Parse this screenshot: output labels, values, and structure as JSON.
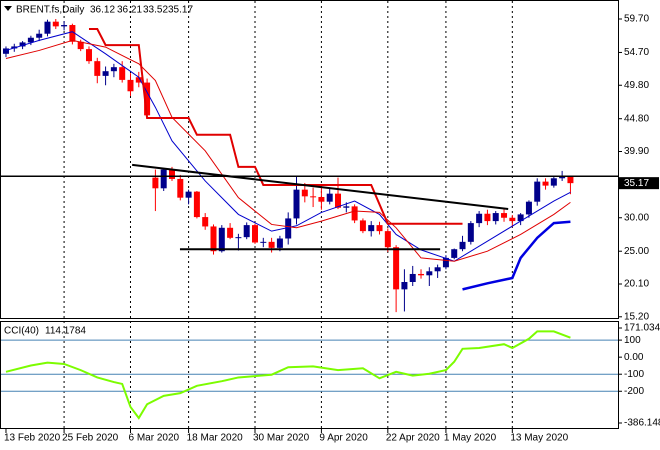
{
  "chart_data": [
    {
      "type": "candlestick",
      "title": "BRENT.fs,Daily",
      "open": [
        54.5,
        55.3,
        55.6,
        56.2,
        56.9,
        57.5,
        59.3,
        58.6,
        58.8,
        56.3,
        55.2,
        53.4,
        51.2,
        51.9,
        52.5,
        50.6,
        51.0,
        50.2,
        36.0,
        34.4,
        37.2,
        35.8,
        33.0,
        33.9,
        30.1,
        28.7,
        25.0,
        28.5,
        27.0,
        27.1,
        28.9,
        26.3,
        26.4,
        25.5,
        26.9,
        29.9,
        34.2,
        33.2,
        33.1,
        32.4,
        33.6,
        31.5,
        31.7,
        29.6,
        28.0,
        28.9,
        28.0,
        25.6,
        19.3,
        20.4,
        21.6,
        21.4,
        22.0,
        22.6,
        24.0,
        25.3,
        26.4,
        29.2,
        30.6,
        29.5,
        30.7,
        30.0,
        29.5,
        30.5,
        32.4,
        35.4,
        34.8,
        35.9,
        36.12
      ],
      "high": [
        55.6,
        56.0,
        56.4,
        57.2,
        58.1,
        59.6,
        59.7,
        59.4,
        59.0,
        56.6,
        55.6,
        53.9,
        52.6,
        53.0,
        53.4,
        51.6,
        51.8,
        50.8,
        37.2,
        37.3,
        37.6,
        36.4,
        34.2,
        34.0,
        30.7,
        29.0,
        28.9,
        29.2,
        27.6,
        29.3,
        29.1,
        27.0,
        27.0,
        27.3,
        30.8,
        36.3,
        35.2,
        34.5,
        34.9,
        34.3,
        36.0,
        32.3,
        32.0,
        29.9,
        29.5,
        29.4,
        28.4,
        25.9,
        22.3,
        22.8,
        22.3,
        22.6,
        23.0,
        24.4,
        25.4,
        27.3,
        29.5,
        31.0,
        31.2,
        31.0,
        31.3,
        30.4,
        30.7,
        32.6,
        35.9,
        35.9,
        36.2,
        37.0,
        36.21
      ],
      "low": [
        54.0,
        54.8,
        55.2,
        55.8,
        56.4,
        57.1,
        58.2,
        58.0,
        55.9,
        54.9,
        53.0,
        50.1,
        49.8,
        51.0,
        50.2,
        48.2,
        49.5,
        45.1,
        31.0,
        34.0,
        35.5,
        32.6,
        32.0,
        29.9,
        28.2,
        24.5,
        24.8,
        26.8,
        25.1,
        26.8,
        26.1,
        25.6,
        24.8,
        25.0,
        26.0,
        29.0,
        32.3,
        31.6,
        31.2,
        32.0,
        31.3,
        30.8,
        29.2,
        27.7,
        27.2,
        27.5,
        24.9,
        15.9,
        16.0,
        19.8,
        20.9,
        19.8,
        21.0,
        22.3,
        23.8,
        25.0,
        26.0,
        28.6,
        28.9,
        29.0,
        29.4,
        28.6,
        28.9,
        30.0,
        31.8,
        34.2,
        34.5,
        35.5,
        33.52
      ],
      "close": [
        55.3,
        55.6,
        56.2,
        56.9,
        57.5,
        59.3,
        58.6,
        58.8,
        56.3,
        55.2,
        53.4,
        51.2,
        51.9,
        52.5,
        50.6,
        48.9,
        50.2,
        45.3,
        34.4,
        37.2,
        35.8,
        33.0,
        33.9,
        30.1,
        28.7,
        25.0,
        28.5,
        27.0,
        27.1,
        28.9,
        26.3,
        26.4,
        25.5,
        26.9,
        29.9,
        34.2,
        33.2,
        33.1,
        32.4,
        33.6,
        31.5,
        31.7,
        29.6,
        28.0,
        28.9,
        28.0,
        25.6,
        19.3,
        20.4,
        21.6,
        21.4,
        22.0,
        22.6,
        24.0,
        25.3,
        26.4,
        29.2,
        30.6,
        29.5,
        30.7,
        30.0,
        29.5,
        30.5,
        32.4,
        35.4,
        34.8,
        35.9,
        36.1,
        35.17
      ],
      "up_color": "#00008b",
      "down_color": "#ff0000",
      "xlim": [
        -0.72,
        73.73
      ],
      "ylim": [
        15.02,
        62.24
      ],
      "yticks": [
        {
          "value": 59.7,
          "label": "59.70"
        },
        {
          "value": 54.7,
          "label": "54.70"
        },
        {
          "value": 49.8,
          "label": "49.80"
        },
        {
          "value": 44.8,
          "label": "44.80"
        },
        {
          "value": 39.9,
          "label": "39.90"
        },
        {
          "value": 30,
          "label": "30.00"
        },
        {
          "value": 25,
          "label": "25.00"
        },
        {
          "value": 20.1,
          "label": "20.10"
        },
        {
          "value": 15.2,
          "label": "15.20"
        }
      ],
      "xticks": [
        {
          "value": 0,
          "label": "13 Feb 2020"
        },
        {
          "value": 7,
          "label": "25 Feb 2020"
        },
        {
          "value": 15,
          "label": "6 Mar 2020"
        },
        {
          "value": 22,
          "label": "18 Mar 2020"
        },
        {
          "value": 30,
          "label": "30 Mar 2020"
        },
        {
          "value": 38,
          "label": "9 Apr 2020"
        },
        {
          "value": 46,
          "label": "22 Apr 2020"
        },
        {
          "value": 53,
          "label": "1 May 2020"
        },
        {
          "value": 61,
          "label": "13 May 2020"
        }
      ],
      "grid": true,
      "lines": [
        {
          "color": "#0000cd",
          "width": 1,
          "x": [
            0,
            4,
            8,
            12,
            16,
            18,
            20,
            24,
            28,
            32,
            35,
            38,
            42,
            45,
            47,
            50,
            54,
            58,
            62,
            66,
            68
          ],
          "values": [
            55.0,
            56.5,
            57.8,
            54.5,
            51.0,
            46.5,
            41.5,
            35.5,
            30.5,
            28.0,
            28.8,
            30.8,
            32.5,
            30.5,
            27.5,
            25.2,
            23.5,
            26.5,
            29.5,
            32.5,
            33.8
          ]
        },
        {
          "color": "#e00000",
          "width": 1,
          "x": [
            0,
            4,
            8,
            12,
            16,
            18,
            20,
            24,
            28,
            32,
            35,
            38,
            42,
            45,
            47,
            50,
            54,
            58,
            62,
            66,
            68
          ],
          "values": [
            53.8,
            55.0,
            56.5,
            55.5,
            53.0,
            50.5,
            45.0,
            40.0,
            33.0,
            29.0,
            28.5,
            29.5,
            31.0,
            30.8,
            28.5,
            24.0,
            23.5,
            25.0,
            27.5,
            30.5,
            32.3
          ]
        },
        {
          "color": "#e00000",
          "width": 2,
          "x": [
            10,
            11,
            12,
            16,
            17,
            22,
            23,
            27,
            28,
            30,
            31,
            44,
            46,
            55
          ],
          "values": [
            58.2,
            58.2,
            55.8,
            55.8,
            44.9,
            44.9,
            42.4,
            42.4,
            37.6,
            37.6,
            34.9,
            34.9,
            29.1,
            29.1
          ]
        },
        {
          "color": "#0000e0",
          "width": 2.5,
          "x": [
            55,
            58,
            61,
            62,
            64,
            66,
            68
          ],
          "values": [
            19.3,
            20.2,
            21.0,
            24.0,
            27.0,
            29.2,
            29.4
          ]
        },
        {
          "color": "#000000",
          "width": 1.5,
          "x": [
            -0.72,
            73.73
          ],
          "values": [
            36.2,
            36.2
          ]
        },
        {
          "color": "#000000",
          "width": 2,
          "x": [
            15.2,
            60.5
          ],
          "values": [
            37.9,
            31.3
          ]
        },
        {
          "color": "#000000",
          "width": 2,
          "x": [
            20.96,
            52.3
          ],
          "values": [
            25.3,
            25.3
          ]
        }
      ]
    },
    {
      "type": "line",
      "title": "CCI(40)",
      "color": "#7cfc00",
      "x": [
        0,
        3,
        5,
        7,
        9,
        11,
        13,
        14,
        15,
        16,
        17,
        19,
        21,
        23,
        26,
        28,
        32,
        34,
        37,
        40,
        43,
        45,
        47,
        49,
        51,
        53,
        54,
        55,
        57,
        60,
        61,
        63,
        64,
        66,
        68
      ],
      "values": [
        -86,
        -49,
        -32,
        -40,
        -76,
        -119,
        -146,
        -157,
        -292,
        -357,
        -276,
        -227,
        -211,
        -168,
        -141,
        -119,
        -103,
        -59,
        -54,
        -76,
        -65,
        -124,
        -86,
        -108,
        -97,
        -76,
        -27,
        49,
        54,
        76,
        54,
        108,
        151,
        151,
        114.1784
      ],
      "ylim": [
        -386.148,
        171.0341
      ],
      "yticks": [
        171.0341,
        100,
        {
          "value": 0,
          "label": "0.00"
        },
        -100,
        -200,
        -386.148
      ],
      "levels": [
        100,
        -100,
        -200
      ],
      "level_color": "#4682b4"
    }
  ]
}
